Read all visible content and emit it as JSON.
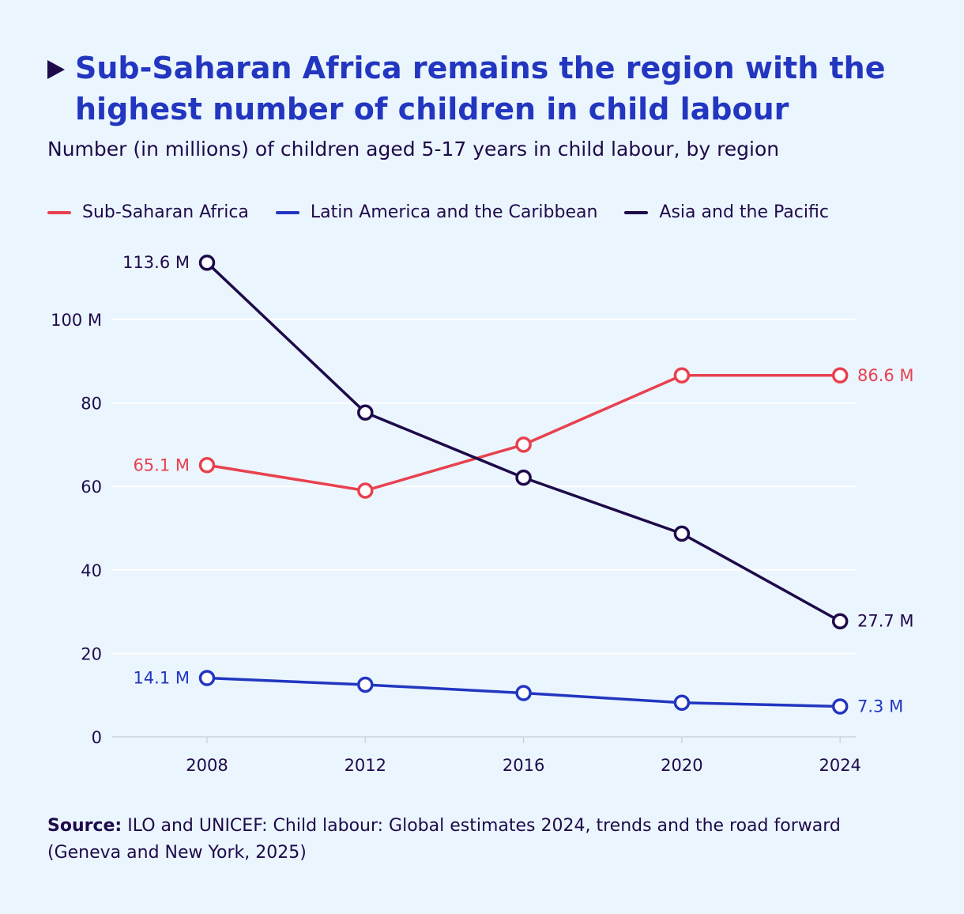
{
  "header": {
    "title": "Sub-Saharan Africa remains the region with the highest number of children in child labour",
    "subtitle": "Number (in millions) of children aged 5-17 years in child labour, by region"
  },
  "legend": [
    {
      "label": "Sub-Saharan Africa",
      "color": "#e8414f"
    },
    {
      "label": "Latin America and the Caribbean",
      "color": "#2236c0"
    },
    {
      "label": "Asia and the Pacific",
      "color": "#1e0a4a"
    }
  ],
  "source": {
    "label": "Source:",
    "text": "ILO and UNICEF: Child labour: Global estimates 2024, trends and the road forward (Geneva and New York, 2025)"
  },
  "chart_data": {
    "type": "line",
    "title": "Sub-Saharan Africa remains the region with the highest number of children in child labour",
    "subtitle": "Number (in millions) of children aged 5-17 years in child labour, by region",
    "x": [
      2008,
      2012,
      2016,
      2020,
      2024
    ],
    "ylim": [
      0,
      120
    ],
    "y_ticks": [
      {
        "value": 0,
        "label": "0"
      },
      {
        "value": 20,
        "label": "20"
      },
      {
        "value": 40,
        "label": "40"
      },
      {
        "value": 60,
        "label": "60"
      },
      {
        "value": 80,
        "label": "80"
      },
      {
        "value": 100,
        "label": "100 M"
      }
    ],
    "grid": true,
    "legend_position": "top-left",
    "series": [
      {
        "name": "Sub-Saharan Africa",
        "color": "#e8414f",
        "values": [
          65.1,
          59.0,
          70.0,
          86.6,
          86.6
        ],
        "labels": {
          "first": "65.1 M",
          "last": "86.6 M"
        }
      },
      {
        "name": "Latin America and the Caribbean",
        "color": "#2236c0",
        "values": [
          14.1,
          12.5,
          10.5,
          8.2,
          7.3
        ],
        "labels": {
          "first": "14.1 M",
          "last": "7.3 M"
        }
      },
      {
        "name": "Asia and the Pacific",
        "color": "#1e0a4a",
        "values": [
          113.6,
          77.7,
          62.1,
          48.7,
          27.7
        ],
        "labels": {
          "first": "113.6 M",
          "last": "27.7 M"
        }
      }
    ]
  }
}
